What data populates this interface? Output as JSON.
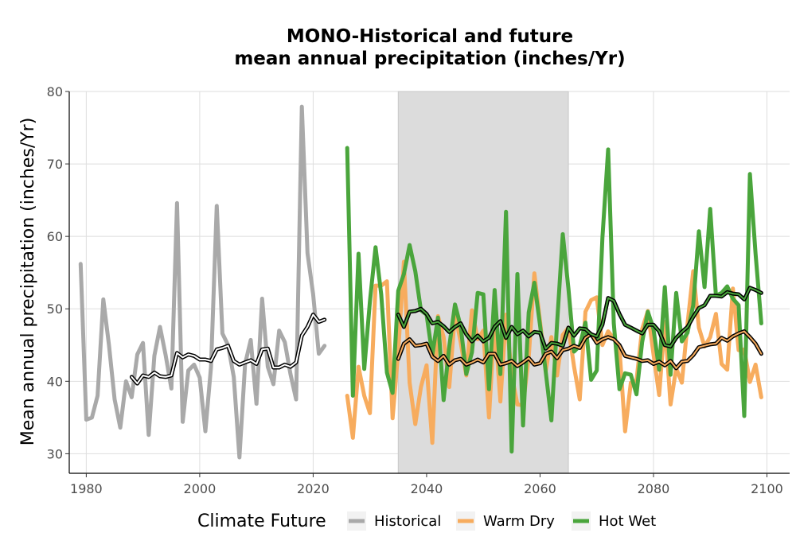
{
  "chart_data": {
    "type": "line",
    "title_line1": "MONO-Historical and future",
    "title_line2": "mean annual precipitation (inches/Yr)",
    "xlabel": "",
    "ylabel": "Mean annual precipitation (inches/Yr)",
    "xlim": [
      1977,
      2104
    ],
    "ylim": [
      27.3,
      80.0
    ],
    "x_ticks": [
      1980,
      2000,
      2020,
      2040,
      2060,
      2080,
      2100
    ],
    "y_ticks": [
      30,
      40,
      50,
      60,
      70,
      80
    ],
    "grid": true,
    "shaded_period": {
      "x_start": 2035,
      "x_end": 2065
    },
    "legend": {
      "title": "Climate Future",
      "position": "bottom",
      "entries": [
        "Historical",
        "Warm Dry",
        "Hot Wet"
      ]
    },
    "colors": {
      "Historical": "#a9a9a9",
      "Warm Dry": "#f7ac5e",
      "Hot Wet": "#4aa53c",
      "smooth": "#000000",
      "shade": "#dcdcdc"
    },
    "series": [
      {
        "name": "Historical",
        "x": [
          1979,
          1980,
          1981,
          1982,
          1983,
          1984,
          1985,
          1986,
          1987,
          1988,
          1989,
          1990,
          1991,
          1992,
          1993,
          1994,
          1995,
          1996,
          1997,
          1998,
          1999,
          2000,
          2001,
          2002,
          2003,
          2004,
          2005,
          2006,
          2007,
          2008,
          2009,
          2010,
          2011,
          2012,
          2013,
          2014,
          2015,
          2016,
          2017,
          2018,
          2019,
          2020,
          2021,
          2022
        ],
        "values": [
          56.2,
          34.7,
          35.0,
          38.0,
          51.3,
          45.0,
          37.5,
          33.6,
          40.0,
          37.8,
          43.7,
          45.3,
          32.6,
          43.5,
          47.5,
          43.6,
          39.0,
          64.6,
          34.4,
          41.5,
          42.3,
          40.5,
          33.1,
          42.0,
          64.2,
          46.6,
          45.0,
          40.6,
          29.5,
          42.4,
          45.7,
          36.9,
          51.4,
          42.0,
          39.6,
          47.0,
          45.4,
          41.0,
          37.5,
          77.9,
          57.7,
          52.0,
          43.8,
          44.9
        ]
      },
      {
        "name": "Historical smoothed",
        "x": [
          1988,
          1989,
          1990,
          1991,
          1992,
          1993,
          1994,
          1995,
          1996,
          1997,
          1998,
          1999,
          2000,
          2001,
          2002,
          2003,
          2004,
          2005,
          2006,
          2007,
          2008,
          2009,
          2010,
          2011,
          2012,
          2013,
          2014,
          2015,
          2016,
          2017,
          2018,
          2019,
          2020,
          2021,
          2022
        ],
        "values": [
          40.6,
          39.7,
          40.8,
          40.6,
          41.2,
          40.7,
          40.6,
          40.8,
          43.9,
          43.3,
          43.7,
          43.5,
          43.0,
          43.0,
          42.8,
          44.4,
          44.6,
          44.9,
          42.8,
          42.3,
          42.6,
          42.9,
          42.4,
          44.4,
          44.5,
          41.9,
          41.9,
          42.3,
          42.0,
          42.6,
          46.3,
          47.5,
          49.2,
          48.2,
          48.5
        ]
      },
      {
        "name": "Warm Dry",
        "x": [
          2026,
          2027,
          2028,
          2029,
          2030,
          2031,
          2032,
          2033,
          2034,
          2035,
          2036,
          2037,
          2038,
          2039,
          2040,
          2041,
          2042,
          2043,
          2044,
          2045,
          2046,
          2047,
          2048,
          2049,
          2050,
          2051,
          2052,
          2053,
          2054,
          2055,
          2056,
          2057,
          2058,
          2059,
          2060,
          2061,
          2062,
          2063,
          2064,
          2065,
          2066,
          2067,
          2068,
          2069,
          2070,
          2071,
          2072,
          2073,
          2074,
          2075,
          2076,
          2077,
          2078,
          2079,
          2080,
          2081,
          2082,
          2083,
          2084,
          2085,
          2086,
          2087,
          2088,
          2089,
          2090,
          2091,
          2092,
          2093,
          2094,
          2095,
          2096,
          2097,
          2098,
          2099
        ],
        "values": [
          38.0,
          32.2,
          42.0,
          38.0,
          35.6,
          53.2,
          53.2,
          53.8,
          34.9,
          44.2,
          56.5,
          39.8,
          34.1,
          39.2,
          42.2,
          31.5,
          49.0,
          46.1,
          39.2,
          49.4,
          45.4,
          40.8,
          49.8,
          45.8,
          47.0,
          35.0,
          48.5,
          37.2,
          49.2,
          40.9,
          36.8,
          36.7,
          43.3,
          54.9,
          48.2,
          41.4,
          46.1,
          40.8,
          46.4,
          47.4,
          42.0,
          37.5,
          49.6,
          51.2,
          51.6,
          45.0,
          46.9,
          45.9,
          44.6,
          33.1,
          39.8,
          40.1,
          47.2,
          49.7,
          43.7,
          38.1,
          48.2,
          36.8,
          41.8,
          39.8,
          47.9,
          55.2,
          47.4,
          44.8,
          46.1,
          49.3,
          42.4,
          41.6,
          52.8,
          44.3,
          44.4,
          39.9,
          42.3,
          37.8
        ]
      },
      {
        "name": "Warm Dry smoothed",
        "x": [
          2035,
          2036,
          2037,
          2038,
          2039,
          2040,
          2041,
          2042,
          2043,
          2044,
          2045,
          2046,
          2047,
          2048,
          2049,
          2050,
          2051,
          2052,
          2053,
          2054,
          2055,
          2056,
          2057,
          2058,
          2059,
          2060,
          2061,
          2062,
          2063,
          2064,
          2065,
          2066,
          2067,
          2068,
          2069,
          2070,
          2071,
          2072,
          2073,
          2074,
          2075,
          2076,
          2077,
          2078,
          2079,
          2080,
          2081,
          2082,
          2083,
          2084,
          2085,
          2086,
          2087,
          2088,
          2089,
          2090,
          2091,
          2092,
          2093,
          2094,
          2095,
          2096,
          2097,
          2098,
          2099
        ],
        "values": [
          43.1,
          45.2,
          45.8,
          44.9,
          45.0,
          45.2,
          43.4,
          42.8,
          43.5,
          42.3,
          42.9,
          43.1,
          42.3,
          42.6,
          43.0,
          42.6,
          43.8,
          43.8,
          42.3,
          42.5,
          42.8,
          42.1,
          42.6,
          43.2,
          42.3,
          42.5,
          43.8,
          44.1,
          43.2,
          44.3,
          44.5,
          44.9,
          44.6,
          46.0,
          46.5,
          45.3,
          45.8,
          46.1,
          45.8,
          45.0,
          43.5,
          43.3,
          43.1,
          42.8,
          42.9,
          42.4,
          42.7,
          42.2,
          42.8,
          41.8,
          42.7,
          42.8,
          43.6,
          44.7,
          44.9,
          45.1,
          45.2,
          46.0,
          45.6,
          46.2,
          46.6,
          46.9,
          46.1,
          45.2,
          43.8
        ]
      },
      {
        "name": "Hot Wet",
        "x": [
          2026,
          2027,
          2028,
          2029,
          2030,
          2031,
          2032,
          2033,
          2034,
          2035,
          2036,
          2037,
          2038,
          2039,
          2040,
          2041,
          2042,
          2043,
          2044,
          2045,
          2046,
          2047,
          2048,
          2049,
          2050,
          2051,
          2052,
          2053,
          2054,
          2055,
          2056,
          2057,
          2058,
          2059,
          2060,
          2061,
          2062,
          2063,
          2064,
          2065,
          2066,
          2067,
          2068,
          2069,
          2070,
          2071,
          2072,
          2073,
          2074,
          2075,
          2076,
          2077,
          2078,
          2079,
          2080,
          2081,
          2082,
          2083,
          2084,
          2085,
          2086,
          2087,
          2088,
          2089,
          2090,
          2091,
          2092,
          2093,
          2094,
          2095,
          2096,
          2097,
          2098,
          2099
        ],
        "values": [
          72.2,
          38.0,
          57.6,
          41.7,
          51.0,
          58.5,
          52.0,
          41.2,
          38.4,
          52.5,
          54.8,
          58.8,
          55.2,
          49.8,
          49.2,
          43.6,
          48.8,
          37.4,
          44.8,
          50.6,
          47.6,
          41.0,
          44.0,
          52.2,
          52.0,
          38.9,
          52.6,
          41.0,
          63.4,
          30.3,
          54.8,
          33.9,
          49.5,
          53.6,
          47.7,
          41.3,
          34.6,
          47.9,
          60.3,
          52.8,
          44.1,
          44.9,
          48.1,
          40.2,
          41.5,
          59.8,
          72.0,
          48.0,
          38.9,
          41.1,
          40.9,
          38.2,
          45.4,
          49.6,
          47.2,
          41.6,
          53.0,
          40.9,
          52.2,
          45.5,
          46.7,
          50.5,
          60.7,
          53.0,
          63.8,
          51.8,
          52.2,
          53.1,
          51.4,
          50.5,
          35.2,
          68.6,
          57.6,
          48.0
        ]
      },
      {
        "name": "Hot Wet smoothed",
        "x": [
          2035,
          2036,
          2037,
          2038,
          2039,
          2040,
          2041,
          2042,
          2043,
          2044,
          2045,
          2046,
          2047,
          2048,
          2049,
          2050,
          2051,
          2052,
          2053,
          2054,
          2055,
          2056,
          2057,
          2058,
          2059,
          2060,
          2061,
          2062,
          2063,
          2064,
          2065,
          2066,
          2067,
          2068,
          2069,
          2070,
          2071,
          2072,
          2073,
          2074,
          2075,
          2076,
          2077,
          2078,
          2079,
          2080,
          2081,
          2082,
          2083,
          2084,
          2085,
          2086,
          2087,
          2088,
          2089,
          2090,
          2091,
          2092,
          2093,
          2094,
          2095,
          2096,
          2097,
          2098,
          2099
        ],
        "values": [
          49.2,
          47.5,
          49.6,
          49.7,
          50.0,
          49.3,
          48.0,
          48.2,
          47.6,
          46.8,
          47.5,
          48.0,
          46.5,
          45.5,
          46.3,
          45.5,
          46.0,
          47.5,
          48.3,
          46.0,
          47.5,
          46.5,
          47.0,
          46.2,
          46.8,
          46.7,
          44.5,
          45.3,
          45.2,
          44.9,
          47.4,
          46.3,
          47.3,
          47.2,
          46.5,
          46.2,
          47.8,
          51.5,
          51.1,
          49.3,
          47.8,
          47.4,
          47.0,
          46.6,
          47.8,
          47.8,
          46.9,
          45.0,
          44.8,
          46.0,
          46.8,
          47.5,
          48.9,
          50.1,
          50.5,
          51.8,
          51.8,
          51.7,
          52.3,
          52.1,
          52.0,
          51.3,
          52.9,
          52.6,
          52.2
        ]
      }
    ]
  }
}
